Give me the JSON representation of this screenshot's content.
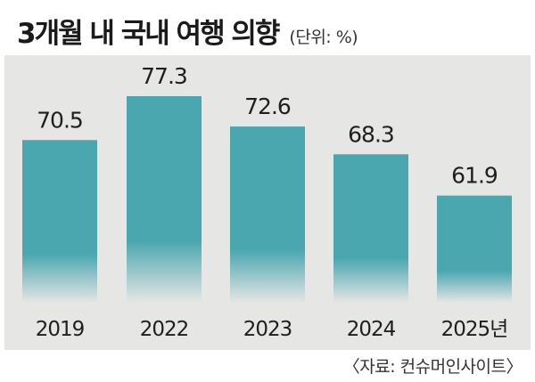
{
  "chart_data": {
    "type": "bar",
    "title": "3개월 내 국내 여행 의향",
    "unit_note": "(단위: %)",
    "source": "〈자료: 컨슈머인사이트〉",
    "categories": [
      "2019",
      "2022",
      "2023",
      "2024",
      "2025년"
    ],
    "values": [
      70.5,
      77.3,
      72.6,
      68.3,
      61.9
    ],
    "value_labels": [
      "70.5",
      "77.3",
      "72.6",
      "68.3",
      "61.9"
    ],
    "ylim": [
      0,
      100
    ],
    "grid": false,
    "bar_color": "#4aa7b0",
    "panel_color": "#e6e6e5"
  }
}
